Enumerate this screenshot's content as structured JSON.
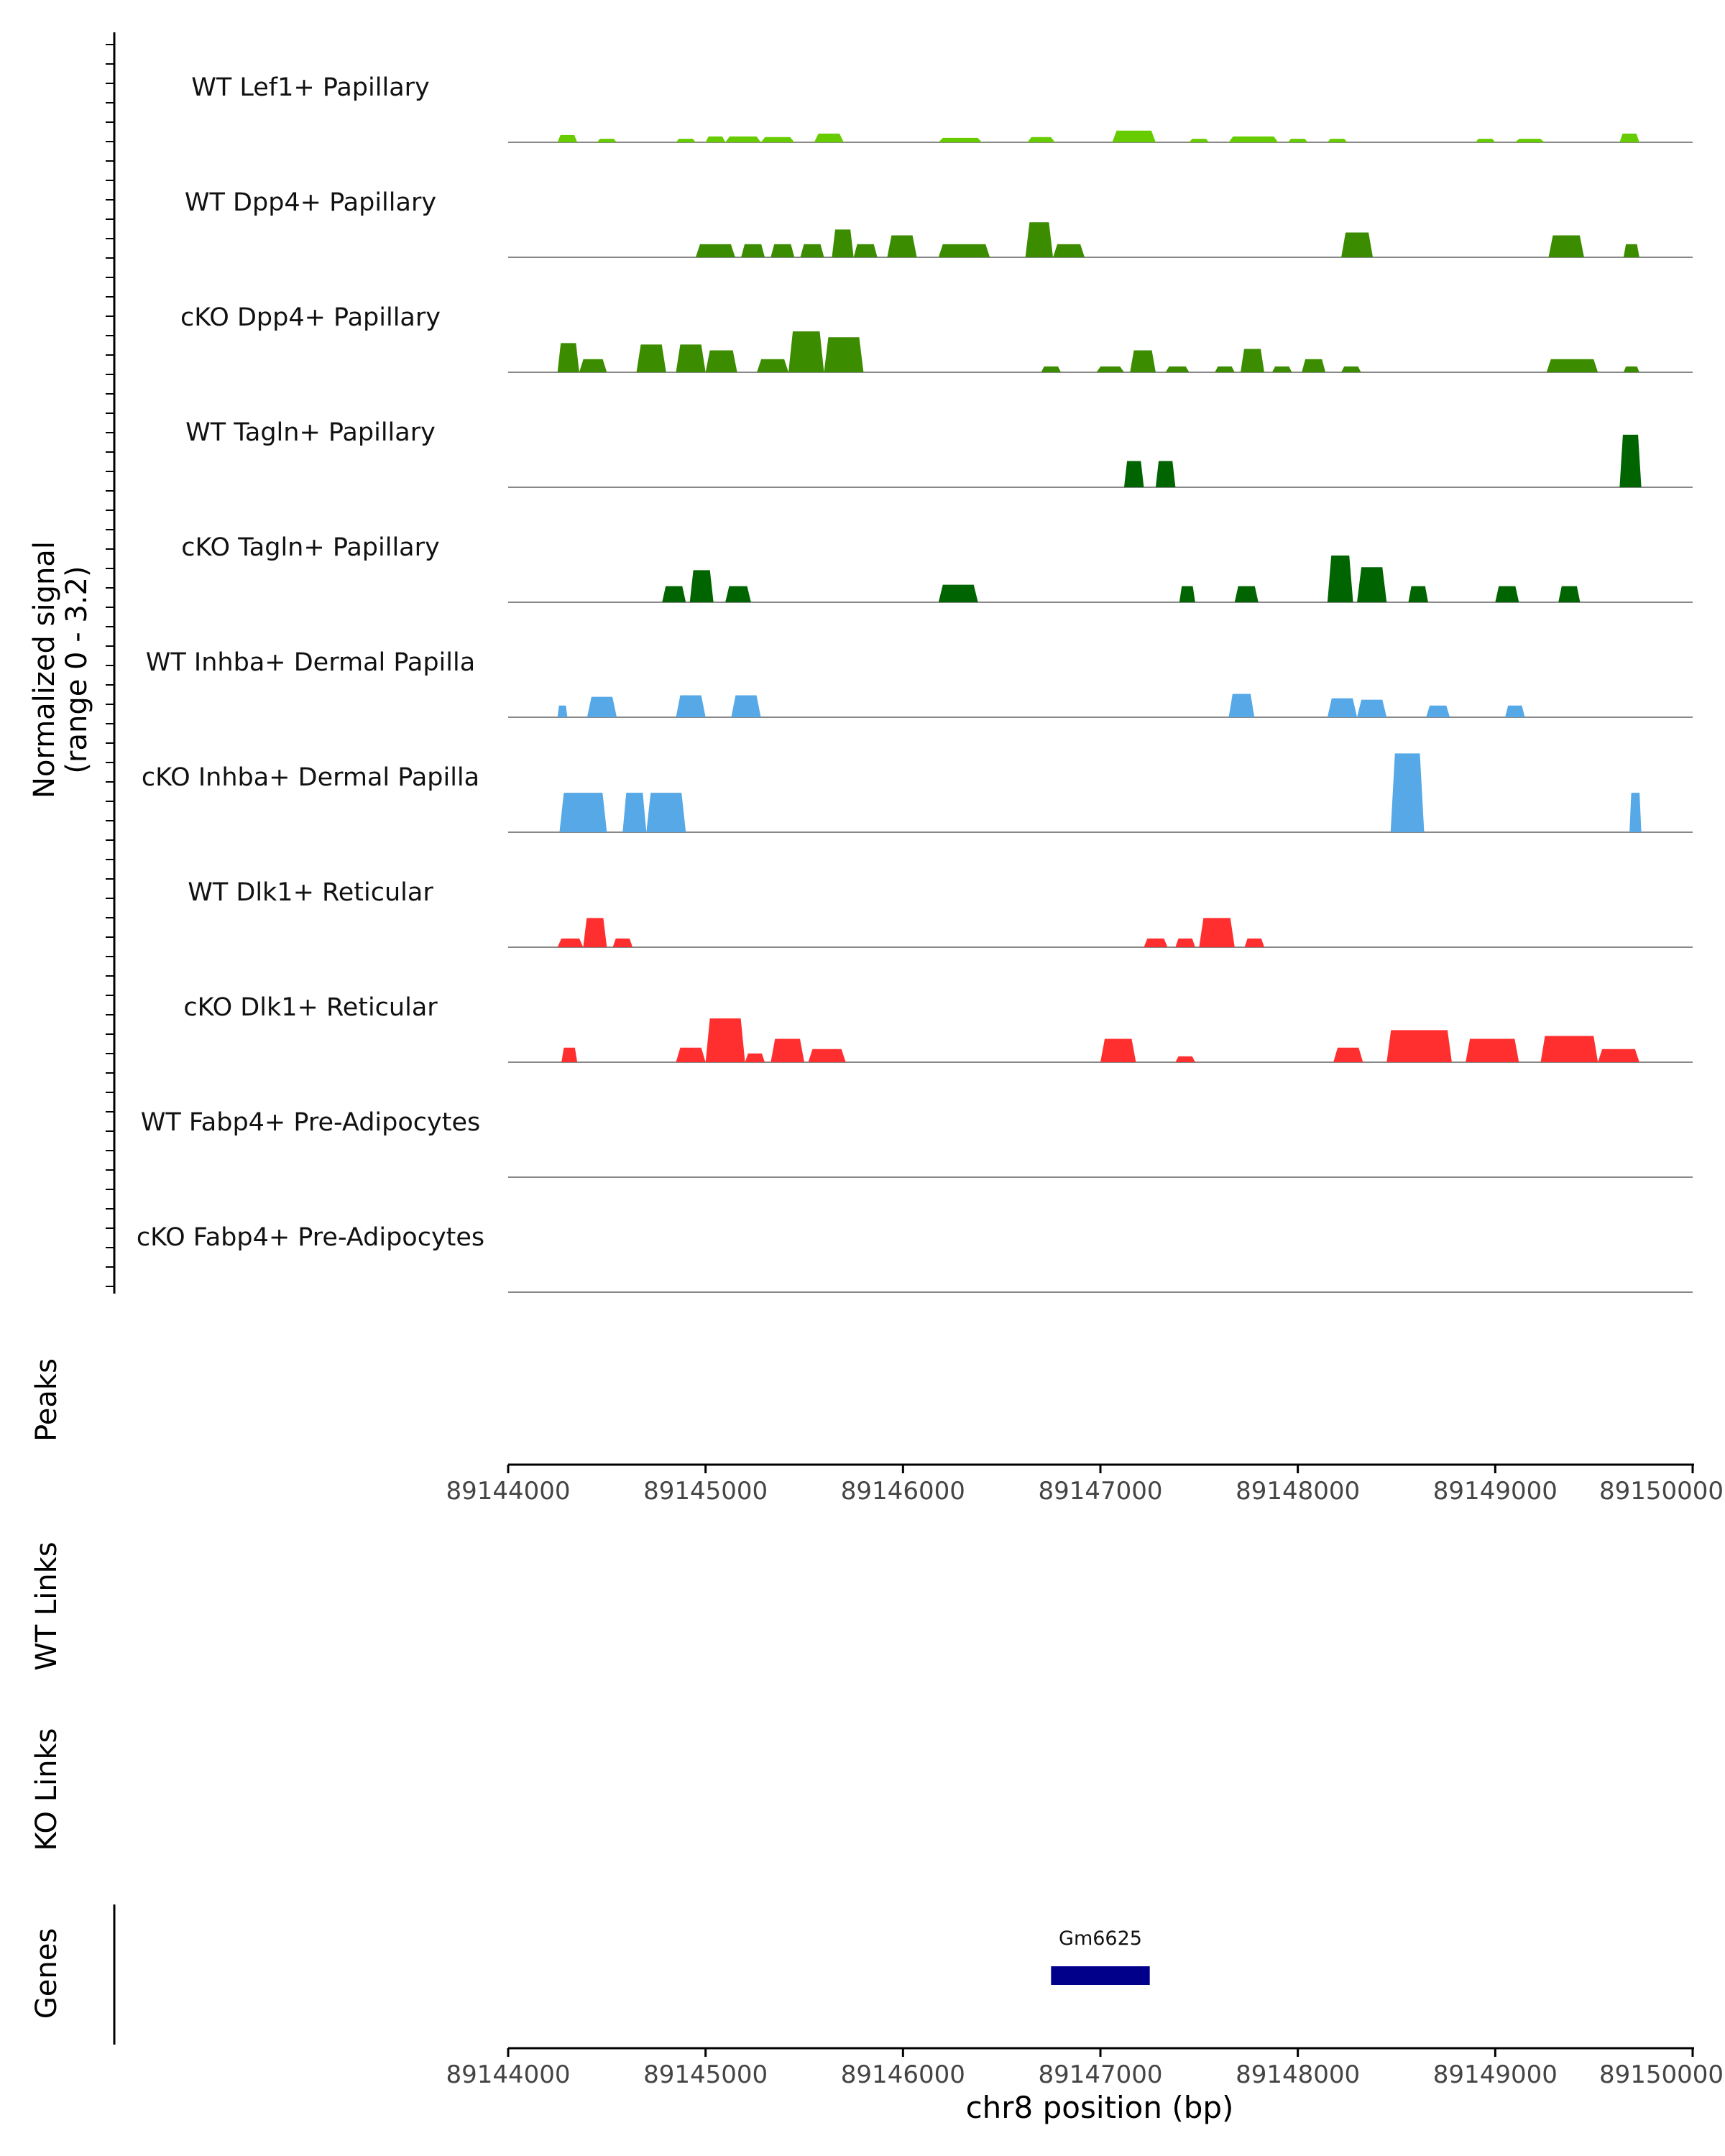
{
  "chart_data": {
    "type": "area",
    "title": "",
    "region": "chr8",
    "xlim": [
      89144000,
      89150000
    ],
    "ylim": [
      0,
      3.2
    ],
    "ylabel_line1": "Normalized signal",
    "ylabel_line2": "(range 0 - 3.2)",
    "xlabel": "chr8 position (bp)",
    "x_ticks": [
      89144000,
      89145000,
      89146000,
      89147000,
      89148000,
      89149000,
      89150000
    ],
    "x_tick_labels": [
      "89144000",
      "89145000",
      "89146000",
      "89147000",
      "89148000",
      "89149000",
      "89150000"
    ],
    "series": [
      {
        "name": "WT Lef1+ Papillary",
        "color": "#66cc00",
        "peaks": [
          [
            89144250,
            89144350,
            0.25
          ],
          [
            89144450,
            89144550,
            0.12
          ],
          [
            89144850,
            89144950,
            0.12
          ],
          [
            89145000,
            89145100,
            0.2
          ],
          [
            89145100,
            89145280,
            0.2
          ],
          [
            89145280,
            89145450,
            0.18
          ],
          [
            89145550,
            89145700,
            0.3
          ],
          [
            89146180,
            89146400,
            0.15
          ],
          [
            89146630,
            89146770,
            0.18
          ],
          [
            89147060,
            89147280,
            0.4
          ],
          [
            89147450,
            89147550,
            0.12
          ],
          [
            89147650,
            89147900,
            0.2
          ],
          [
            89147950,
            89148050,
            0.12
          ],
          [
            89148150,
            89148250,
            0.12
          ],
          [
            89148900,
            89149000,
            0.12
          ],
          [
            89149100,
            89149250,
            0.12
          ],
          [
            89149630,
            89149730,
            0.3
          ]
        ]
      },
      {
        "name": "WT Dpp4+ Papillary",
        "color": "#3c8c00",
        "peaks": [
          [
            89144950,
            89145150,
            0.45
          ],
          [
            89145180,
            89145300,
            0.45
          ],
          [
            89145330,
            89145450,
            0.45
          ],
          [
            89145480,
            89145600,
            0.45
          ],
          [
            89145640,
            89145750,
            0.95
          ],
          [
            89145750,
            89145870,
            0.45
          ],
          [
            89145920,
            89146070,
            0.75
          ],
          [
            89146180,
            89146440,
            0.45
          ],
          [
            89146620,
            89146760,
            1.2
          ],
          [
            89146760,
            89146920,
            0.45
          ],
          [
            89148220,
            89148380,
            0.85
          ],
          [
            89149270,
            89149450,
            0.75
          ],
          [
            89149650,
            89149730,
            0.45
          ]
        ]
      },
      {
        "name": "cKO Dpp4+ Papillary",
        "color": "#3c8c00",
        "peaks": [
          [
            89144250,
            89144360,
            1.0
          ],
          [
            89144360,
            89144500,
            0.45
          ],
          [
            89144650,
            89144800,
            0.95
          ],
          [
            89144850,
            89145000,
            0.95
          ],
          [
            89145000,
            89145160,
            0.75
          ],
          [
            89145260,
            89145420,
            0.45
          ],
          [
            89145420,
            89145600,
            1.4
          ],
          [
            89145600,
            89145800,
            1.2
          ],
          [
            89146700,
            89146800,
            0.2
          ],
          [
            89146980,
            89147120,
            0.2
          ],
          [
            89147150,
            89147280,
            0.75
          ],
          [
            89147330,
            89147450,
            0.2
          ],
          [
            89147580,
            89147680,
            0.2
          ],
          [
            89147710,
            89147830,
            0.8
          ],
          [
            89147870,
            89147970,
            0.2
          ],
          [
            89148020,
            89148140,
            0.45
          ],
          [
            89148220,
            89148320,
            0.2
          ],
          [
            89149260,
            89149520,
            0.45
          ],
          [
            89149650,
            89149730,
            0.2
          ]
        ]
      },
      {
        "name": "WT Tagln+ Papillary",
        "color": "#006400",
        "peaks": [
          [
            89147120,
            89147220,
            0.9
          ],
          [
            89147280,
            89147380,
            0.9
          ],
          [
            89149630,
            89149740,
            1.8
          ]
        ]
      },
      {
        "name": "cKO Tagln+ Papillary",
        "color": "#006400",
        "peaks": [
          [
            89144780,
            89144900,
            0.55
          ],
          [
            89144920,
            89145040,
            1.1
          ],
          [
            89145100,
            89145230,
            0.55
          ],
          [
            89146180,
            89146380,
            0.6
          ],
          [
            89147400,
            89147480,
            0.55
          ],
          [
            89147680,
            89147800,
            0.55
          ],
          [
            89148150,
            89148280,
            1.6
          ],
          [
            89148300,
            89148450,
            1.2
          ],
          [
            89148560,
            89148660,
            0.55
          ],
          [
            89149000,
            89149120,
            0.55
          ],
          [
            89149320,
            89149430,
            0.55
          ]
        ]
      },
      {
        "name": "WT Inhba+ Dermal Papilla",
        "color": "#56a9e6",
        "peaks": [
          [
            89144250,
            89144300,
            0.4
          ],
          [
            89144400,
            89144550,
            0.7
          ],
          [
            89144850,
            89145000,
            0.75
          ],
          [
            89145130,
            89145280,
            0.75
          ],
          [
            89147650,
            89147780,
            0.8
          ],
          [
            89148150,
            89148300,
            0.65
          ],
          [
            89148300,
            89148450,
            0.6
          ],
          [
            89148650,
            89148770,
            0.4
          ],
          [
            89149050,
            89149150,
            0.4
          ]
        ]
      },
      {
        "name": "cKO Inhba+ Dermal Papilla",
        "color": "#56a9e6",
        "peaks": [
          [
            89144260,
            89144500,
            1.35
          ],
          [
            89144580,
            89144700,
            1.35
          ],
          [
            89144700,
            89144900,
            1.35
          ],
          [
            89148470,
            89148640,
            2.7
          ],
          [
            89149680,
            89149740,
            1.35
          ]
        ]
      },
      {
        "name": "WT Dlk1+ Reticular",
        "color": "#ff2f2f",
        "peaks": [
          [
            89144250,
            89144380,
            0.3
          ],
          [
            89144380,
            89144500,
            1.0
          ],
          [
            89144530,
            89144630,
            0.3
          ],
          [
            89147220,
            89147340,
            0.3
          ],
          [
            89147380,
            89147480,
            0.3
          ],
          [
            89147500,
            89147680,
            1.0
          ],
          [
            89147730,
            89147830,
            0.3
          ]
        ]
      },
      {
        "name": "cKO Dlk1+ Reticular",
        "color": "#ff2f2f",
        "peaks": [
          [
            89144270,
            89144350,
            0.5
          ],
          [
            89144850,
            89145000,
            0.5
          ],
          [
            89145000,
            89145200,
            1.5
          ],
          [
            89145200,
            89145300,
            0.3
          ],
          [
            89145330,
            89145500,
            0.8
          ],
          [
            89145520,
            89145710,
            0.45
          ],
          [
            89147000,
            89147180,
            0.8
          ],
          [
            89147380,
            89147480,
            0.2
          ],
          [
            89148180,
            89148330,
            0.5
          ],
          [
            89148450,
            89148780,
            1.1
          ],
          [
            89148850,
            89149120,
            0.8
          ],
          [
            89149230,
            89149520,
            0.9
          ],
          [
            89149520,
            89149730,
            0.45
          ]
        ]
      },
      {
        "name": "WT Fabp4+ Pre-Adipocytes",
        "color": "#e69f00",
        "peaks": []
      },
      {
        "name": "cKO Fabp4+ Pre-Adipocytes",
        "color": "#e69f00",
        "peaks": []
      }
    ],
    "peaks_label": "Peaks",
    "wt_links_label": "WT Links",
    "ko_links_label": "KO Links",
    "genes_label": "Genes",
    "genes": [
      {
        "name": "Gm6625",
        "start": 89146750,
        "end": 89147250,
        "color": "#00008b"
      }
    ]
  }
}
